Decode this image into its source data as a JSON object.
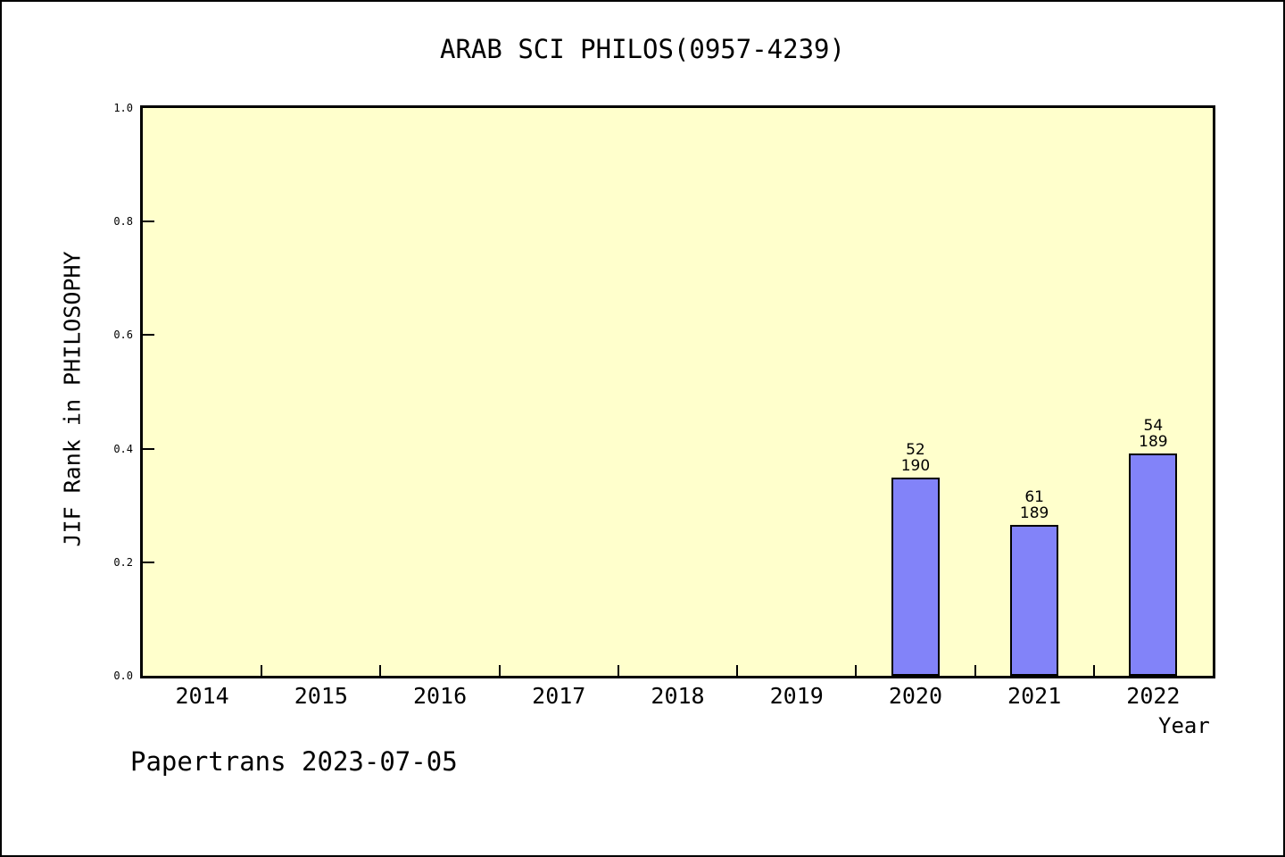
{
  "title": "ARAB SCI PHILOS(0957-4239)",
  "footer": "Papertrans 2023-07-05",
  "chart_data": {
    "type": "bar",
    "title": "ARAB SCI PHILOS(0957-4239)",
    "xlabel": "Year",
    "ylabel": "JIF Rank in PHILOSOPHY",
    "categories": [
      "2014",
      "2015",
      "2016",
      "2017",
      "2018",
      "2019",
      "2020",
      "2021",
      "2022"
    ],
    "ylim": [
      0.0,
      1.0
    ],
    "ytick_labels": [
      "0.0",
      "0.2",
      "0.4",
      "0.6",
      "0.8",
      "1.0"
    ],
    "grid": false,
    "series": [
      {
        "name": "JIF Rank in PHILOSOPHY",
        "values": [
          null,
          null,
          null,
          null,
          null,
          null,
          0.349,
          0.265,
          0.392
        ]
      }
    ],
    "bars": [
      {
        "category": "2020",
        "rank": "52",
        "total": "190",
        "bar_height": 0.349
      },
      {
        "category": "2021",
        "rank": "61",
        "total": "189",
        "bar_height": 0.265
      },
      {
        "category": "2022",
        "rank": "54",
        "total": "189",
        "bar_height": 0.392
      }
    ],
    "colors": {
      "bar_fill": "#8283f9",
      "bar_edge": "#000000",
      "plot_bg": "#ffffcc",
      "axis": "#000000"
    }
  }
}
